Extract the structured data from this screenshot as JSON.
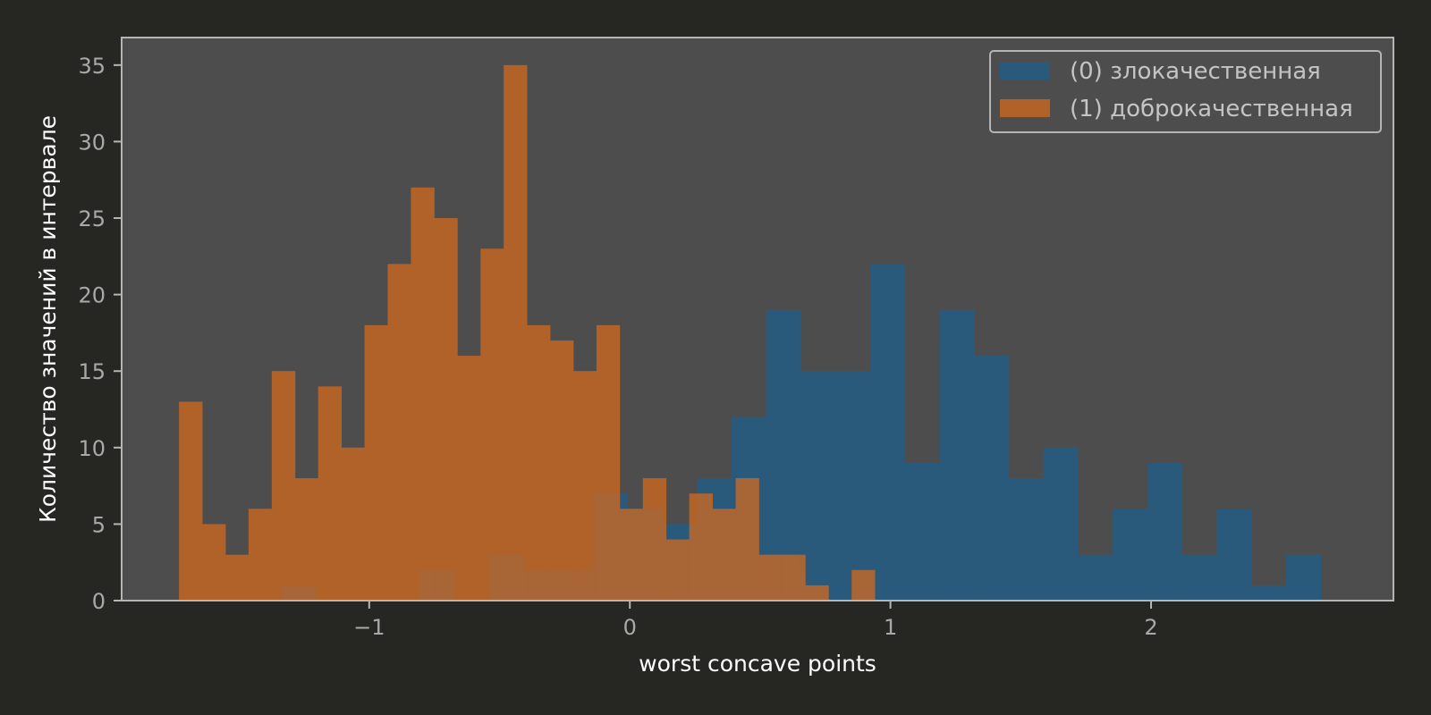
{
  "colors": {
    "background": "#262722",
    "plot_background": "#4d4d4d",
    "frame": "#b5b5b5",
    "tick_text": "#a9a9a9",
    "label_text": "#ffffff",
    "legend_text": "#c4c4c4",
    "series_0": "#1f5f8b",
    "series_1": "#d2691e"
  },
  "chart_data": {
    "type": "histogram",
    "title": "",
    "xlabel": "worst concave points",
    "ylabel": "Количество значений в интервале",
    "xlim": [
      -1.95,
      2.93
    ],
    "ylim": [
      0,
      36.8
    ],
    "x_ticks": [
      -1,
      0,
      1,
      2
    ],
    "x_tick_labels": [
      "−1",
      "0",
      "1",
      "2"
    ],
    "y_ticks": [
      0,
      5,
      10,
      15,
      20,
      25,
      30,
      35
    ],
    "y_tick_labels": [
      "0",
      "5",
      "10",
      "15",
      "20",
      "25",
      "30",
      "35"
    ],
    "grid": false,
    "legend_position": "top-right",
    "bar_opacity": 0.75,
    "series": [
      {
        "name": "(0) злокачественная",
        "color": "#1f5f8b",
        "bins": [
          [
            -1.338,
            -1.205,
            1
          ],
          [
            -0.807,
            -0.674,
            2
          ],
          [
            -0.541,
            -0.408,
            3
          ],
          [
            -0.408,
            -0.275,
            2
          ],
          [
            -0.275,
            -0.142,
            2
          ],
          [
            -0.142,
            -0.009,
            7
          ],
          [
            -0.009,
            0.124,
            6
          ],
          [
            0.124,
            0.257,
            5
          ],
          [
            0.257,
            0.39,
            8
          ],
          [
            0.39,
            0.523,
            12
          ],
          [
            0.523,
            0.656,
            19
          ],
          [
            0.656,
            0.789,
            15
          ],
          [
            0.789,
            0.922,
            15
          ],
          [
            0.922,
            1.055,
            22
          ],
          [
            1.055,
            1.188,
            9
          ],
          [
            1.188,
            1.321,
            19
          ],
          [
            1.321,
            1.454,
            16
          ],
          [
            1.454,
            1.587,
            8
          ],
          [
            1.587,
            1.72,
            10
          ],
          [
            1.72,
            1.853,
            3
          ],
          [
            1.853,
            1.986,
            6
          ],
          [
            1.986,
            2.119,
            9
          ],
          [
            2.119,
            2.252,
            3
          ],
          [
            2.252,
            2.385,
            6
          ],
          [
            2.385,
            2.518,
            1
          ],
          [
            2.518,
            2.651,
            3
          ]
        ]
      },
      {
        "name": "(1) доброкачественная",
        "color": "#d2691e",
        "bins": [
          [
            -1.73,
            -1.641,
            13
          ],
          [
            -1.641,
            -1.552,
            5
          ],
          [
            -1.552,
            -1.463,
            3
          ],
          [
            -1.463,
            -1.374,
            6
          ],
          [
            -1.374,
            -1.285,
            15
          ],
          [
            -1.285,
            -1.196,
            8
          ],
          [
            -1.196,
            -1.107,
            14
          ],
          [
            -1.107,
            -1.018,
            10
          ],
          [
            -1.018,
            -0.929,
            18
          ],
          [
            -0.929,
            -0.84,
            22
          ],
          [
            -0.84,
            -0.751,
            27
          ],
          [
            -0.751,
            -0.662,
            25
          ],
          [
            -0.662,
            -0.573,
            16
          ],
          [
            -0.573,
            -0.484,
            23
          ],
          [
            -0.484,
            -0.395,
            35
          ],
          [
            -0.395,
            -0.306,
            18
          ],
          [
            -0.306,
            -0.217,
            17
          ],
          [
            -0.217,
            -0.128,
            15
          ],
          [
            -0.128,
            -0.039,
            18
          ],
          [
            -0.039,
            0.05,
            6
          ],
          [
            0.05,
            0.139,
            8
          ],
          [
            0.139,
            0.228,
            4
          ],
          [
            0.228,
            0.317,
            7
          ],
          [
            0.317,
            0.406,
            6
          ],
          [
            0.406,
            0.495,
            8
          ],
          [
            0.495,
            0.584,
            3
          ],
          [
            0.584,
            0.673,
            3
          ],
          [
            0.673,
            0.762,
            1
          ],
          [
            0.762,
            0.851,
            0
          ],
          [
            0.851,
            0.94,
            2
          ]
        ]
      }
    ]
  }
}
